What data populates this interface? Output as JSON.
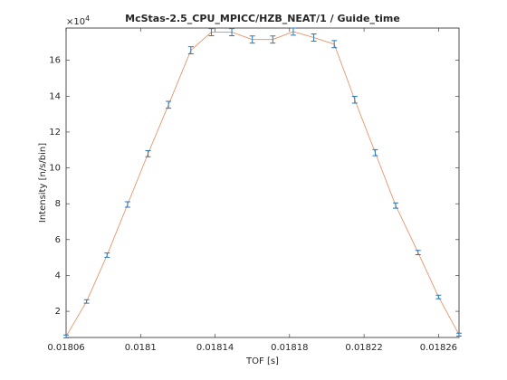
{
  "chart_data": {
    "type": "line",
    "title": "McStas-2.5_CPU_MPICC/HZB_NEAT/1 / Guide_time",
    "x_label": "TOF [s]",
    "y_label": "Intensity [n/s/bin]",
    "y_multiplier_base": "×10",
    "y_multiplier_exponent": "4",
    "x": [
      0.01806,
      0.018071,
      0.018082,
      0.018093,
      0.018104,
      0.018115,
      0.018127,
      0.018138,
      0.018149,
      0.01816,
      0.018171,
      0.018182,
      0.018193,
      0.018204,
      0.018215,
      0.018226,
      0.018237,
      0.018249,
      0.01826,
      0.018271
    ],
    "series": [
      {
        "color": "#e8895a",
        "error_color": "#2a7ab8",
        "values": [
          0.6,
          2.55,
          5.13,
          7.96,
          10.79,
          13.52,
          16.56,
          17.57,
          17.57,
          17.16,
          17.16,
          17.6,
          17.27,
          16.9,
          13.8,
          10.85,
          7.9,
          5.28,
          2.8,
          0.7
        ],
        "errors": [
          0.08,
          0.1,
          0.12,
          0.15,
          0.17,
          0.19,
          0.2,
          0.2,
          0.2,
          0.2,
          0.2,
          0.2,
          0.2,
          0.2,
          0.19,
          0.17,
          0.15,
          0.12,
          0.1,
          0.08
        ]
      }
    ],
    "xlim": [
      0.01806,
      0.018271
    ],
    "xticks": [
      0.01806,
      0.0181,
      0.01814,
      0.01818,
      0.01822,
      0.01826
    ],
    "ylim": [
      0.54,
      17.8
    ],
    "yticks": [
      2,
      4,
      6,
      8,
      10,
      12,
      14,
      16
    ],
    "grid": false
  }
}
